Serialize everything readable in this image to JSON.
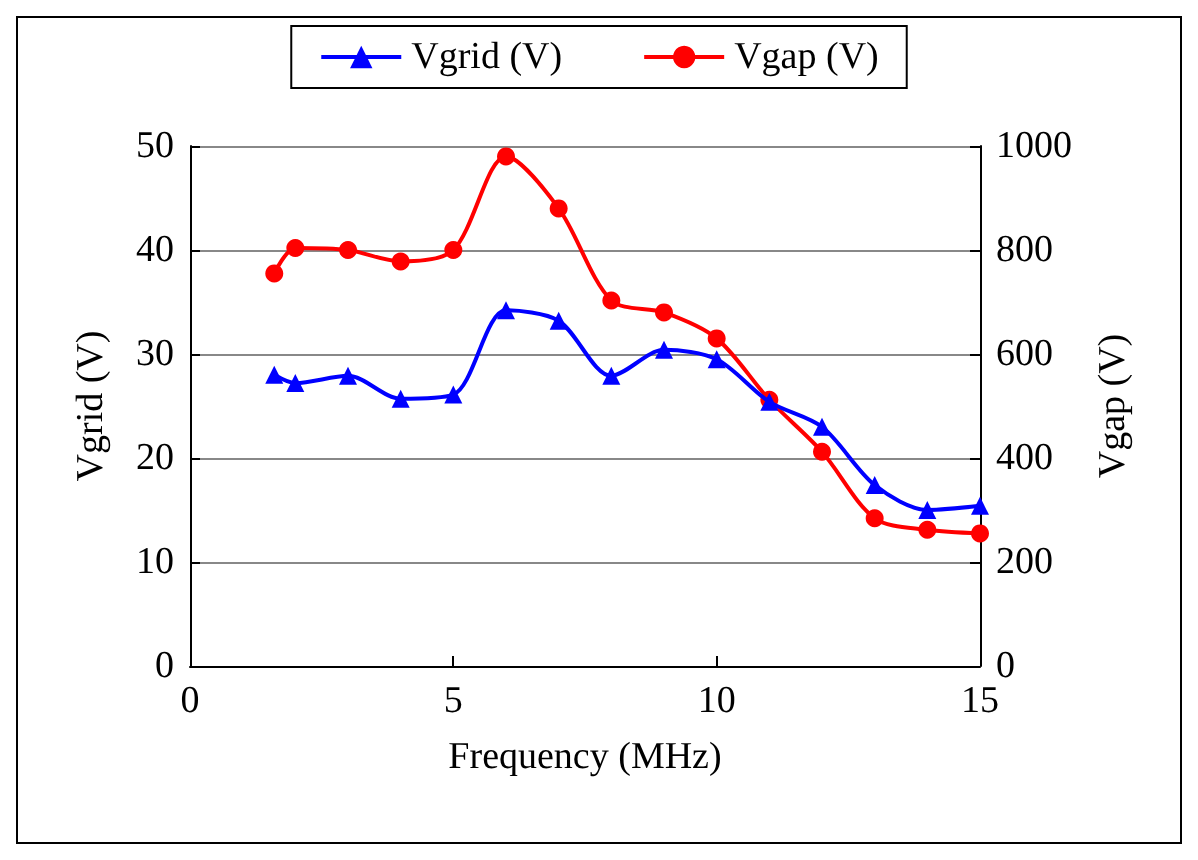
{
  "chart_data": {
    "type": "line",
    "xlabel": "Frequency (MHz)",
    "ylabel": "Vgrid (V)",
    "y2label": "Vgap (V)",
    "x": [
      1.6,
      2,
      3,
      4,
      5,
      6,
      7,
      8,
      9,
      10,
      11,
      12,
      13,
      14,
      15
    ],
    "series": [
      {
        "name": "Vgrid (V)",
        "color": "#0000ff",
        "marker": "triangle",
        "values": [
          28,
          27.2,
          27.9,
          25.7,
          26.1,
          34.2,
          33.2,
          27.9,
          30.4,
          29.5,
          25.4,
          23,
          17.4,
          15,
          15.4
        ]
      },
      {
        "name": "Vgap (V)",
        "color": "#ff0000",
        "marker": "circle",
        "axis": "y2",
        "values": [
          755,
          804,
          800,
          778,
          800,
          980,
          880,
          703,
          680,
          630,
          512,
          412,
          284,
          262,
          255
        ]
      }
    ],
    "xlim": [
      0,
      15
    ],
    "xticks": [
      0,
      5,
      10,
      15
    ],
    "ylim": [
      0,
      50
    ],
    "yticks": [
      0,
      10,
      20,
      30,
      40,
      50
    ],
    "y2lim": [
      0,
      1000
    ],
    "y2ticks": [
      0,
      200,
      400,
      600,
      800,
      1000
    ],
    "grid": "y",
    "legend": "top",
    "line_style": "solid"
  }
}
